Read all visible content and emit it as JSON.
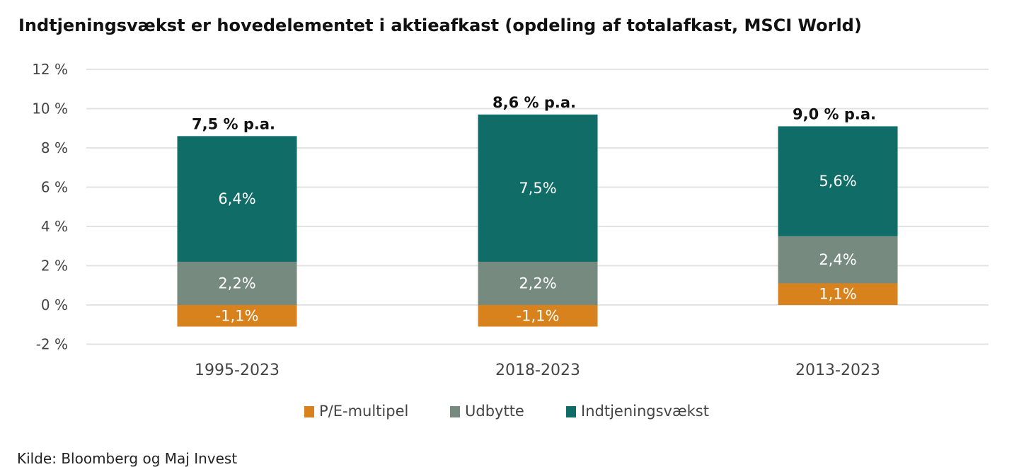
{
  "title": "Indtjeningsvækst er hovedelementet i aktieafkast (opdeling af totalafkast, MSCI World)",
  "source": "Kilde: Bloomberg og Maj Invest",
  "chart_data": {
    "type": "bar",
    "stacked": true,
    "title": "Indtjeningsvækst er hovedelementet i aktieafkast (opdeling af totalafkast, MSCI World)",
    "xlabel": "",
    "ylabel": "",
    "ylim": [
      -2,
      12
    ],
    "yticks": [
      -2,
      0,
      2,
      4,
      6,
      8,
      10,
      12
    ],
    "ytick_labels": [
      "-2 %",
      "0 %",
      "2 %",
      "4 %",
      "6 %",
      "8 %",
      "10 %",
      "12 %"
    ],
    "grid": true,
    "legend_position": "bottom",
    "categories": [
      "1995-2023",
      "2018-2023",
      "2013-2023"
    ],
    "totals": [
      "7,5 % p.a.",
      "8,6 % p.a.",
      "9,0 % p.a."
    ],
    "series": [
      {
        "name": "P/E-multipel",
        "color": "#d8821e",
        "values": [
          -1.1,
          -1.1,
          1.1
        ],
        "labels": [
          "-1,1%",
          "-1,1%",
          "1,1%"
        ]
      },
      {
        "name": "Udbytte",
        "color": "#768a80",
        "values": [
          2.2,
          2.2,
          2.4
        ],
        "labels": [
          "2,2%",
          "2,2%",
          "2,4%"
        ]
      },
      {
        "name": "Indtjeningsvækst",
        "color": "#0f6c66",
        "values": [
          6.4,
          7.5,
          5.6
        ],
        "labels": [
          "6,4%",
          "7,5%",
          "5,6%"
        ]
      }
    ]
  }
}
